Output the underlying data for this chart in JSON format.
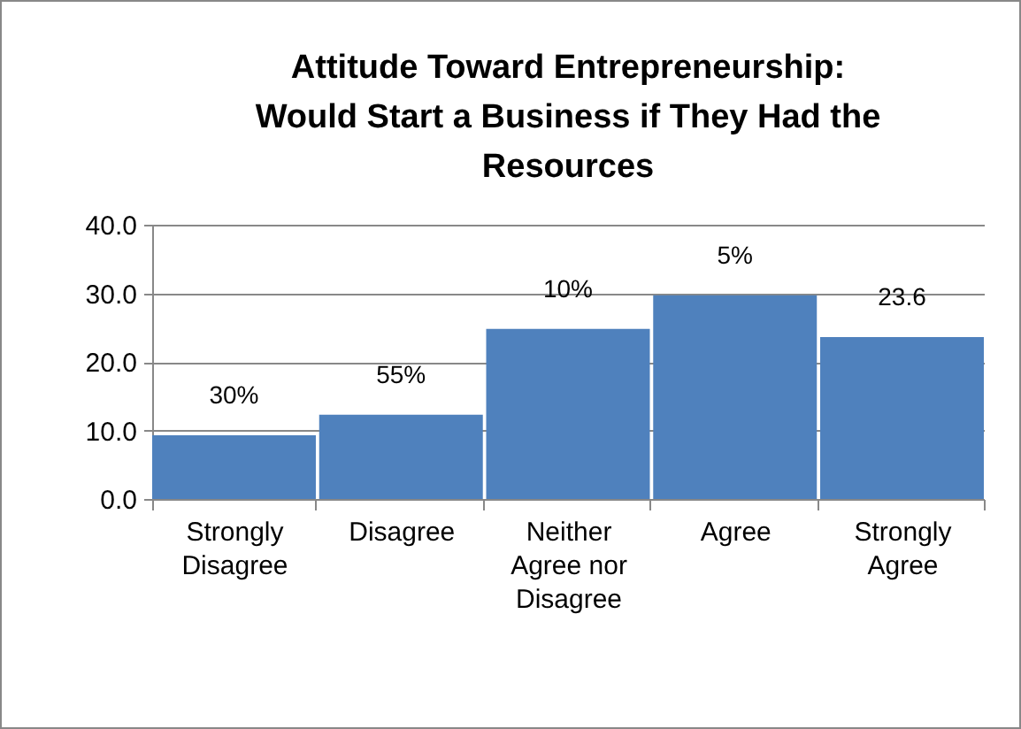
{
  "chart_data": {
    "type": "bar",
    "title": [
      "Attitude Toward Entrepreneurship:",
      "Would Start a Business if They Had the",
      "Resources"
    ],
    "categories": [
      "Strongly Disagree",
      "Disagree",
      "Neither Agree nor Disagree",
      "Agree",
      "Strongly Agree"
    ],
    "values": [
      9.3,
      12.3,
      24.8,
      29.7,
      23.6
    ],
    "color": "#4f81bd",
    "annotations": [
      "30%",
      "55%",
      "10%",
      "5%",
      "23.6"
    ],
    "ylim": [
      0,
      40
    ],
    "yticks": [
      {
        "value": 0,
        "label": "0.0"
      },
      {
        "value": 10,
        "label": "10.0"
      },
      {
        "value": 20,
        "label": "20.0"
      },
      {
        "value": 30,
        "label": "30.0"
      },
      {
        "value": 40,
        "label": "40.0"
      }
    ],
    "grid": "y"
  }
}
